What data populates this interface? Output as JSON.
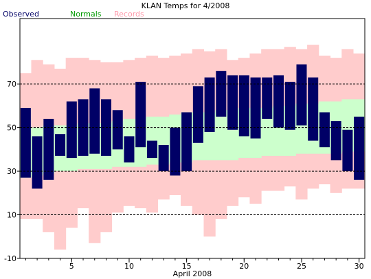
{
  "chart_data": {
    "type": "bar",
    "title": "KLAN Temps for 4/2008",
    "xlabel": "April 2008",
    "ylabel": "",
    "ylim": [
      -10,
      100
    ],
    "xlim": [
      0.5,
      30.5
    ],
    "yticks": [
      -10,
      10,
      30,
      50,
      70
    ],
    "xticks": [
      5,
      10,
      15,
      20,
      25,
      30
    ],
    "gridlines_y": [
      10,
      30,
      50,
      70
    ],
    "legend": {
      "position": "top-left",
      "entries": [
        {
          "name": "Observed",
          "color": "#000066"
        },
        {
          "name": "Normals",
          "color": "#009900"
        },
        {
          "name": "Records",
          "color": "#ff99aa"
        }
      ]
    },
    "days": [
      1,
      2,
      3,
      4,
      5,
      6,
      7,
      8,
      9,
      10,
      11,
      12,
      13,
      14,
      15,
      16,
      17,
      18,
      19,
      20,
      21,
      22,
      23,
      24,
      25,
      26,
      27,
      28,
      29,
      30
    ],
    "series": [
      {
        "name": "Records",
        "color": "#ffcccc",
        "high": [
          75,
          81,
          79,
          77,
          82,
          82,
          81,
          80,
          80,
          81,
          82,
          83,
          82,
          83,
          84,
          86,
          85,
          86,
          81,
          82,
          84,
          86,
          86,
          87,
          86,
          88,
          83,
          82,
          86,
          84
        ],
        "low": [
          8,
          8,
          2,
          -6,
          4,
          13,
          -3,
          2,
          11,
          14,
          13,
          11,
          17,
          19,
          14,
          10,
          0,
          8,
          14,
          18,
          15,
          21,
          21,
          23,
          17,
          22,
          24,
          20,
          22,
          22
        ]
      },
      {
        "name": "Normals",
        "color": "#ccffcc",
        "high": [
          50,
          50,
          51,
          51,
          51,
          52,
          52,
          52,
          53,
          54,
          54,
          55,
          55,
          56,
          57,
          57,
          57,
          58,
          58,
          59,
          59,
          59,
          60,
          60,
          61,
          61,
          62,
          62,
          63,
          63
        ],
        "low": [
          27,
          28,
          29,
          30,
          30,
          31,
          31,
          31,
          32,
          32,
          32,
          33,
          33,
          34,
          34,
          35,
          35,
          35,
          35,
          36,
          36,
          37,
          37,
          37,
          38,
          38,
          38,
          38,
          39,
          39
        ]
      },
      {
        "name": "Observed",
        "color": "#000066",
        "high": [
          59,
          46,
          54,
          47,
          62,
          63,
          68,
          63,
          58,
          46,
          71,
          44,
          42,
          50,
          57,
          69,
          73,
          76,
          74,
          74,
          73,
          73,
          74,
          71,
          79,
          73,
          57,
          53,
          49,
          55
        ],
        "low": [
          27,
          22,
          26,
          37,
          36,
          37,
          38,
          37,
          40,
          34,
          41,
          36,
          30,
          28,
          30,
          43,
          48,
          55,
          49,
          46,
          45,
          54,
          50,
          49,
          51,
          44,
          41,
          35,
          30,
          26
        ]
      }
    ]
  }
}
